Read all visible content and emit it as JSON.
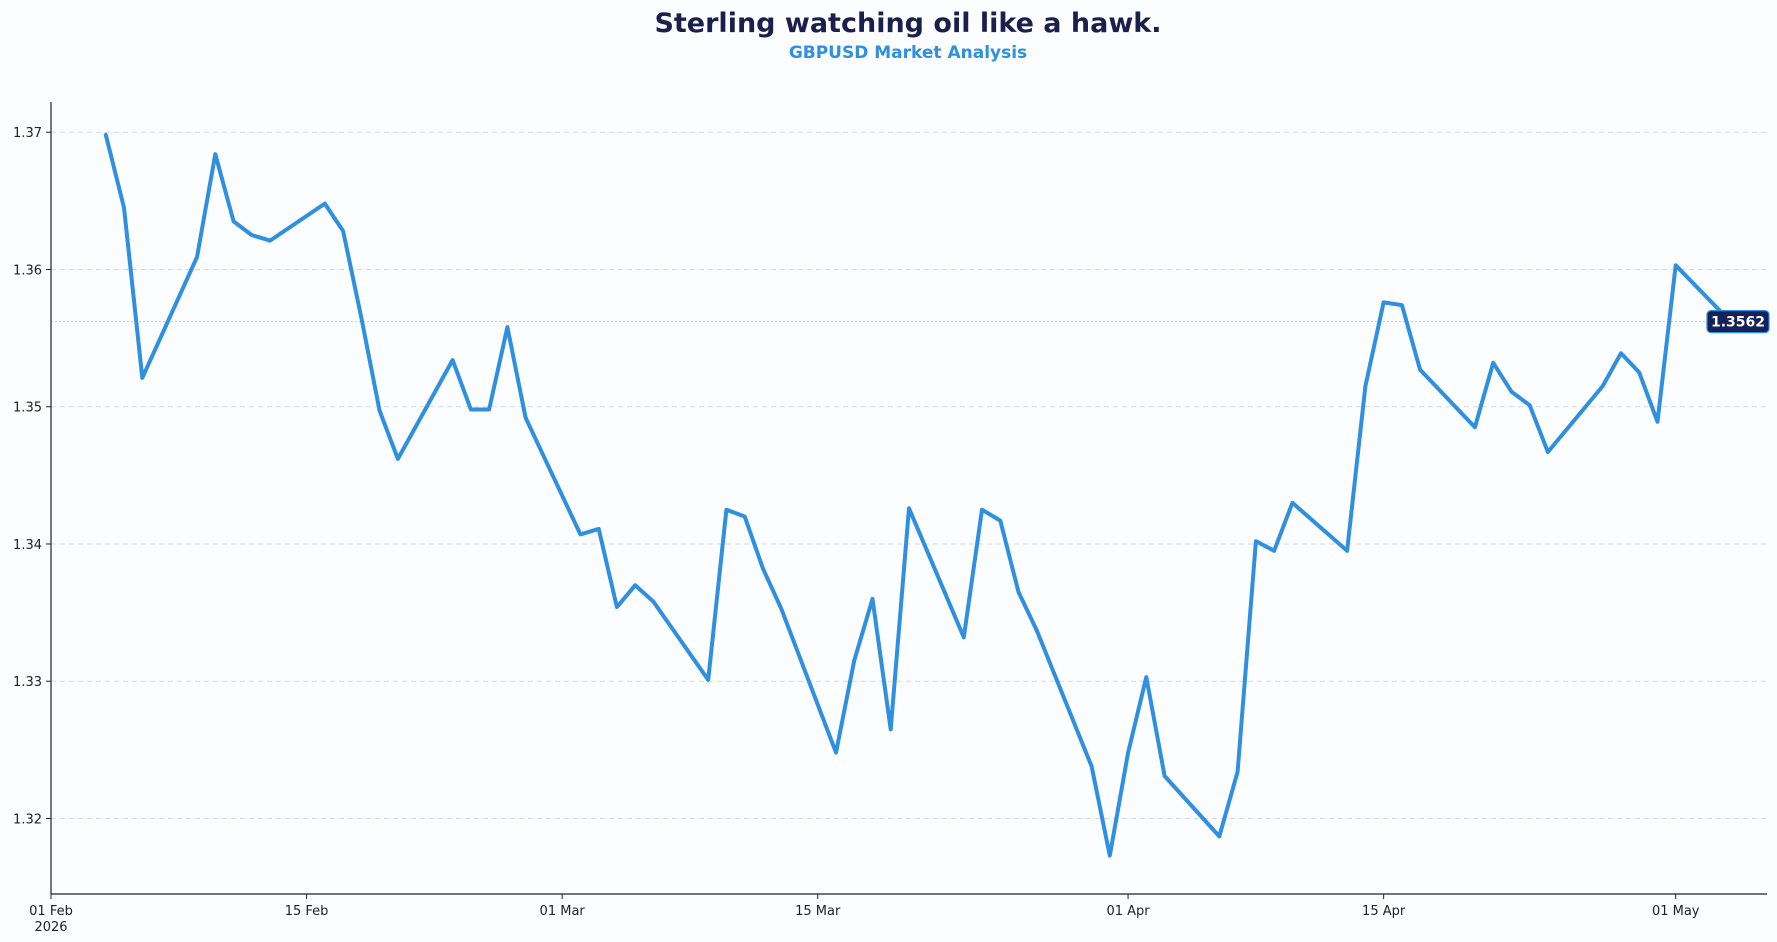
{
  "chart_data": {
    "type": "line",
    "title": "Sterling watching oil like a hawk.",
    "subtitle": "GBPUSD Market Analysis",
    "xlabel": "",
    "ylabel": "",
    "xlim": [
      "2026-02-01",
      "2026-05-06"
    ],
    "ylim": [
      1.3145,
      1.3722
    ],
    "yticks": [
      1.32,
      1.33,
      1.34,
      1.35,
      1.36,
      1.37
    ],
    "yticklabels": [
      "1.32",
      "1.33",
      "1.34",
      "1.35",
      "1.36",
      "1.37"
    ],
    "xticks": [
      {
        "date": "2026-02-01",
        "label": "01 Feb",
        "sublabel": "2026"
      },
      {
        "date": "2026-02-15",
        "label": "15 Feb",
        "sublabel": ""
      },
      {
        "date": "2026-03-01",
        "label": "01 Mar",
        "sublabel": ""
      },
      {
        "date": "2026-03-15",
        "label": "15 Mar",
        "sublabel": ""
      },
      {
        "date": "2026-04-01",
        "label": "01 Apr",
        "sublabel": ""
      },
      {
        "date": "2026-04-15",
        "label": "15 Apr",
        "sublabel": ""
      },
      {
        "date": "2026-05-01",
        "label": "01 May",
        "sublabel": ""
      }
    ],
    "grid": "y-dashed",
    "line_color": "#2f8fe0",
    "badge_color": "#162157",
    "last_value_label": "1.3562",
    "series": [
      {
        "name": "",
        "points": [
          [
            "2026-02-04",
            1.3698
          ],
          [
            "2026-02-05",
            1.3645
          ],
          [
            "2026-02-06",
            1.3521
          ],
          [
            "2026-02-09",
            1.3609
          ],
          [
            "2026-02-10",
            1.3684
          ],
          [
            "2026-02-11",
            1.3635
          ],
          [
            "2026-02-12",
            1.3625
          ],
          [
            "2026-02-13",
            1.3621
          ],
          [
            "2026-02-16",
            1.3648
          ],
          [
            "2026-02-17",
            1.3628
          ],
          [
            "2026-02-18",
            1.3565
          ],
          [
            "2026-02-19",
            1.3497
          ],
          [
            "2026-02-20",
            1.3462
          ],
          [
            "2026-02-23",
            1.3534
          ],
          [
            "2026-02-24",
            1.3498
          ],
          [
            "2026-02-25",
            1.3498
          ],
          [
            "2026-02-26",
            1.3558
          ],
          [
            "2026-02-27",
            1.3492
          ],
          [
            "2026-03-02",
            1.3407
          ],
          [
            "2026-03-03",
            1.3411
          ],
          [
            "2026-03-04",
            1.3354
          ],
          [
            "2026-03-05",
            1.337
          ],
          [
            "2026-03-06",
            1.3358
          ],
          [
            "2026-03-09",
            1.3301
          ],
          [
            "2026-03-10",
            1.3425
          ],
          [
            "2026-03-11",
            1.342
          ],
          [
            "2026-03-12",
            1.3382
          ],
          [
            "2026-03-13",
            1.3353
          ],
          [
            "2026-03-16",
            1.3248
          ],
          [
            "2026-03-17",
            1.3315
          ],
          [
            "2026-03-18",
            1.336
          ],
          [
            "2026-03-19",
            1.3265
          ],
          [
            "2026-03-20",
            1.3426
          ],
          [
            "2026-03-23",
            1.3332
          ],
          [
            "2026-03-24",
            1.3425
          ],
          [
            "2026-03-25",
            1.3417
          ],
          [
            "2026-03-26",
            1.3365
          ],
          [
            "2026-03-27",
            1.3337
          ],
          [
            "2026-03-30",
            1.3238
          ],
          [
            "2026-03-31",
            1.3173
          ],
          [
            "2026-04-01",
            1.3248
          ],
          [
            "2026-04-02",
            1.3303
          ],
          [
            "2026-04-03",
            1.3231
          ],
          [
            "2026-04-06",
            1.3187
          ],
          [
            "2026-04-07",
            1.3234
          ],
          [
            "2026-04-08",
            1.3402
          ],
          [
            "2026-04-09",
            1.3395
          ],
          [
            "2026-04-10",
            1.343
          ],
          [
            "2026-04-13",
            1.3395
          ],
          [
            "2026-04-14",
            1.3515
          ],
          [
            "2026-04-15",
            1.3576
          ],
          [
            "2026-04-16",
            1.3574
          ],
          [
            "2026-04-17",
            1.3527
          ],
          [
            "2026-04-20",
            1.3485
          ],
          [
            "2026-04-21",
            1.3532
          ],
          [
            "2026-04-22",
            1.3511
          ],
          [
            "2026-04-23",
            1.3501
          ],
          [
            "2026-04-24",
            1.3467
          ],
          [
            "2026-04-27",
            1.3515
          ],
          [
            "2026-04-28",
            1.3539
          ],
          [
            "2026-04-29",
            1.3525
          ],
          [
            "2026-04-30",
            1.3489
          ],
          [
            "2026-05-01",
            1.3603
          ],
          [
            "2026-05-04",
            1.3562
          ]
        ]
      }
    ]
  }
}
